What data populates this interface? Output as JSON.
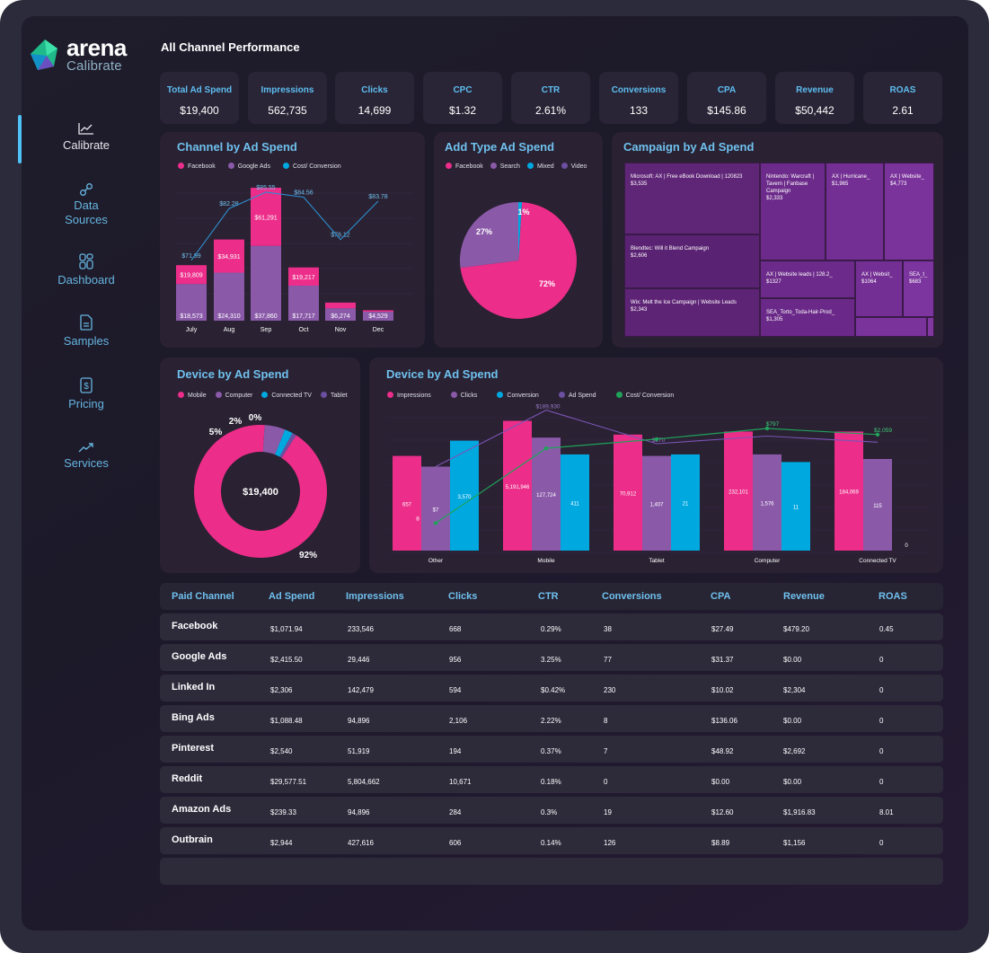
{
  "brand": {
    "name": "arena",
    "sub": "Calibrate"
  },
  "nav": [
    {
      "label": "Calibrate",
      "icon": "chart-line-icon",
      "active": true
    },
    {
      "label": "Data\nSources",
      "icon": "link-icon",
      "active": false
    },
    {
      "label": "Dashboard",
      "icon": "dashboard-icon",
      "active": false
    },
    {
      "label": "Samples",
      "icon": "document-icon",
      "active": false
    },
    {
      "label": "Pricing",
      "icon": "dollar-icon",
      "active": false
    },
    {
      "label": "Services",
      "icon": "trending-up-icon",
      "active": false
    }
  ],
  "page_title": "All Channel Performance",
  "kpis": [
    {
      "label": "Total Ad Spend",
      "value": "$19,400"
    },
    {
      "label": "Impressions",
      "value": "562,735"
    },
    {
      "label": "Clicks",
      "value": "14,699"
    },
    {
      "label": "CPC",
      "value": "$1.32"
    },
    {
      "label": "CTR",
      "value": "2.61%"
    },
    {
      "label": "Conversions",
      "value": "133"
    },
    {
      "label": "CPA",
      "value": "$145.86"
    },
    {
      "label": "Revenue",
      "value": "$50,442"
    },
    {
      "label": "ROAS",
      "value": "2.61"
    }
  ],
  "colors": {
    "pink": "#ec2d8a",
    "purple": "#8a5aa9",
    "blue": "#00a8e0",
    "violet": "#6b4fa0",
    "green": "#1fa35a",
    "accent": "#6fc1ee"
  },
  "chart_data": [
    {
      "type": "bar",
      "title": "Channel by Ad Spend",
      "legend": [
        "Facebook",
        "Google Ads",
        "Cost/ Conversion"
      ],
      "categories": [
        "July",
        "Aug",
        "Sep",
        "Oct",
        "Nov",
        "Dec"
      ],
      "series": [
        {
          "name": "Google Ads",
          "values": [
            18573,
            24310,
            37860,
            17717,
            6274,
            4529
          ],
          "labels": [
            "$18,573",
            "$24,310",
            "$37,860",
            "$17,717",
            "$6,274",
            "$4,529"
          ]
        },
        {
          "name": "Facebook",
          "values": [
            19809,
            34931,
            61291,
            19217,
            6000,
            1500
          ],
          "labels": [
            "$19,809",
            "$34,931",
            "$61,291",
            "$19,217",
            "",
            ""
          ]
        },
        {
          "name": "Cost/ Conversion",
          "values": [
            71.99,
            82.28,
            85.55,
            84.56,
            76.12,
            83.78
          ],
          "labels": [
            "$71.99",
            "$82.28",
            "$85.55",
            "$84.56",
            "$76.12",
            "$83.78"
          ]
        }
      ]
    },
    {
      "type": "pie",
      "title": "Add Type Ad Spend",
      "legend": [
        "Facebook",
        "Search",
        "Mixed",
        "Video"
      ],
      "values": [
        72,
        27,
        1,
        0
      ],
      "labels": [
        "72%",
        "27%",
        "1%",
        ""
      ]
    },
    {
      "type": "treemap",
      "title": "Campaign by Ad Spend",
      "items": [
        {
          "label": "Microsoft: AX | Free eBook Download | 120823",
          "value": "$3,535"
        },
        {
          "label": "Blendtec: Will it Blend Campaign",
          "value": "$2,606"
        },
        {
          "label": "Wix: Melt the Ice Campaign | Website Leads",
          "value": "$2,343"
        },
        {
          "label": "Nintendo: Warcraft | Tavern | Fanbase Campaign",
          "value": "$2,333"
        },
        {
          "label": "AX | Hurricane_",
          "value": "$1,965"
        },
        {
          "label": "AX | Website_",
          "value": "$4,773"
        },
        {
          "label": "AX | Website leads | 128.2_",
          "value": "$1327"
        },
        {
          "label": "AX | Websit_",
          "value": "$1064"
        },
        {
          "label": "SEA_t_",
          "value": "$683"
        },
        {
          "label": "SEA_Torto_Toda-Hair-Prod_",
          "value": "$1,305"
        }
      ]
    },
    {
      "type": "pie",
      "title": "Device by Ad Spend",
      "legend": [
        "Mobile",
        "Computer",
        "Connected TV",
        "Tablet"
      ],
      "values": [
        92,
        5,
        2,
        0
      ],
      "labels": [
        "92%",
        "5%",
        "2%",
        "0%"
      ],
      "center": "$19,400"
    },
    {
      "type": "bar",
      "title": "Device by Ad Spend",
      "legend": [
        "Impressions",
        "Clicks",
        "Conversion",
        "Ad Spend",
        "Cost/ Conversion"
      ],
      "categories": [
        "Other",
        "Mobile",
        "Tablet",
        "Computer",
        "Connected TV"
      ],
      "series": [
        {
          "name": "Impressions",
          "values": [
            62,
            85,
            76,
            78,
            78
          ],
          "labels": [
            "657",
            "5,191,946",
            "70,912",
            "232,101",
            "184,069"
          ]
        },
        {
          "name": "Clicks",
          "values": [
            55,
            74,
            62,
            63,
            60
          ],
          "labels": [
            "$7",
            "127,724",
            "1,407",
            "1,576",
            "115"
          ]
        },
        {
          "name": "Conversion",
          "values": [
            72,
            63,
            63,
            58,
            0
          ],
          "labels": [
            "3,570",
            "411",
            "21",
            "11",
            "0"
          ]
        },
        {
          "name": "Ad Spend",
          "values": [
            55,
            92,
            70,
            75,
            71
          ],
          "labels": [
            "",
            "$189,930",
            "$270",
            "",
            ""
          ]
        },
        {
          "name": "Cost/ Conversion",
          "values": [
            18,
            67,
            73,
            80,
            76
          ],
          "labels": [
            "8",
            "",
            "",
            "$797",
            "$2,059"
          ]
        }
      ]
    }
  ],
  "table": {
    "columns": [
      "Paid Channel",
      "Ad Spend",
      "Impressions",
      "Clicks",
      "CTR",
      "Conversions",
      "CPA",
      "Revenue",
      "ROAS"
    ],
    "rows": [
      [
        "Facebook",
        "$1,071.94",
        "233,546",
        "668",
        "0.29%",
        "38",
        "$27.49",
        "$479.20",
        "0.45"
      ],
      [
        "Google Ads",
        "$2,415.50",
        "29,446",
        "956",
        "3.25%",
        "77",
        "$31.37",
        "$0.00",
        "0"
      ],
      [
        "Linked In",
        "$2,306",
        "142,479",
        "594",
        "$0.42%",
        "230",
        "$10.02",
        "$2,304",
        "0"
      ],
      [
        "Bing Ads",
        "$1,088.48",
        "94,896",
        "2,106",
        "2.22%",
        "8",
        "$136.06",
        "$0.00",
        "0"
      ],
      [
        "Pinterest",
        "$2,540",
        "51,919",
        "194",
        "0.37%",
        "7",
        "$48.92",
        "$2,692",
        "0"
      ],
      [
        "Reddit",
        "$29,577.51",
        "5,804,662",
        "10,671",
        "0.18%",
        "0",
        "$0.00",
        "$0.00",
        "0"
      ],
      [
        "Amazon Ads",
        "$239.33",
        "94,896",
        "284",
        "0.3%",
        "19",
        "$12.60",
        "$1,916.83",
        "8.01"
      ],
      [
        "Outbrain",
        "$2,944",
        "427,616",
        "606",
        "0.14%",
        "126",
        "$8.89",
        "$1,156",
        "0"
      ]
    ]
  }
}
